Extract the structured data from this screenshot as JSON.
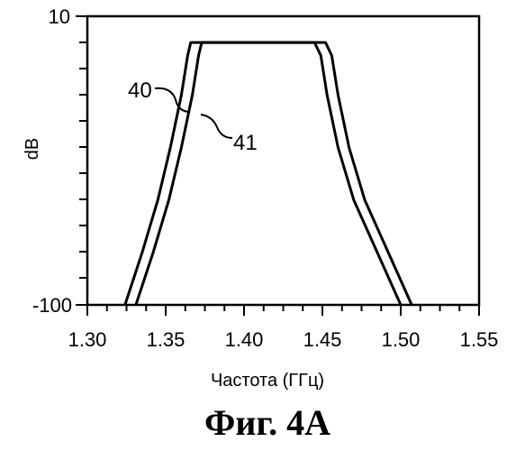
{
  "chart_data": {
    "type": "line",
    "xlabel": "Частота (ГГц)",
    "ylabel": "dB",
    "xlim": [
      1.3,
      1.55
    ],
    "ylim": [
      -100,
      10
    ],
    "x_ticks": [
      "1.30",
      "1.35",
      "1.40",
      "1.45",
      "1.50",
      "1.55"
    ],
    "y_tick_labels": [
      "10",
      "-100"
    ],
    "grid": false,
    "series": [
      {
        "name": "40",
        "x": [
          1.324,
          1.335,
          1.345,
          1.353,
          1.36,
          1.364,
          1.366,
          1.38,
          1.4,
          1.42,
          1.445,
          1.449,
          1.453,
          1.46,
          1.47,
          1.485,
          1.5
        ],
        "y": [
          -100,
          -80,
          -60,
          -40,
          -20,
          -5,
          0,
          0,
          0,
          0,
          0,
          -5,
          -20,
          -40,
          -60,
          -80,
          -100
        ]
      },
      {
        "name": "41",
        "x": [
          1.331,
          1.342,
          1.352,
          1.36,
          1.367,
          1.371,
          1.373,
          1.39,
          1.41,
          1.43,
          1.452,
          1.456,
          1.46,
          1.467,
          1.477,
          1.492,
          1.507
        ],
        "y": [
          -100,
          -80,
          -60,
          -40,
          -20,
          -5,
          0,
          0,
          0,
          0,
          0,
          -5,
          -20,
          -40,
          -60,
          -80,
          -100
        ]
      }
    ]
  },
  "caption": "Фиг. 4А"
}
